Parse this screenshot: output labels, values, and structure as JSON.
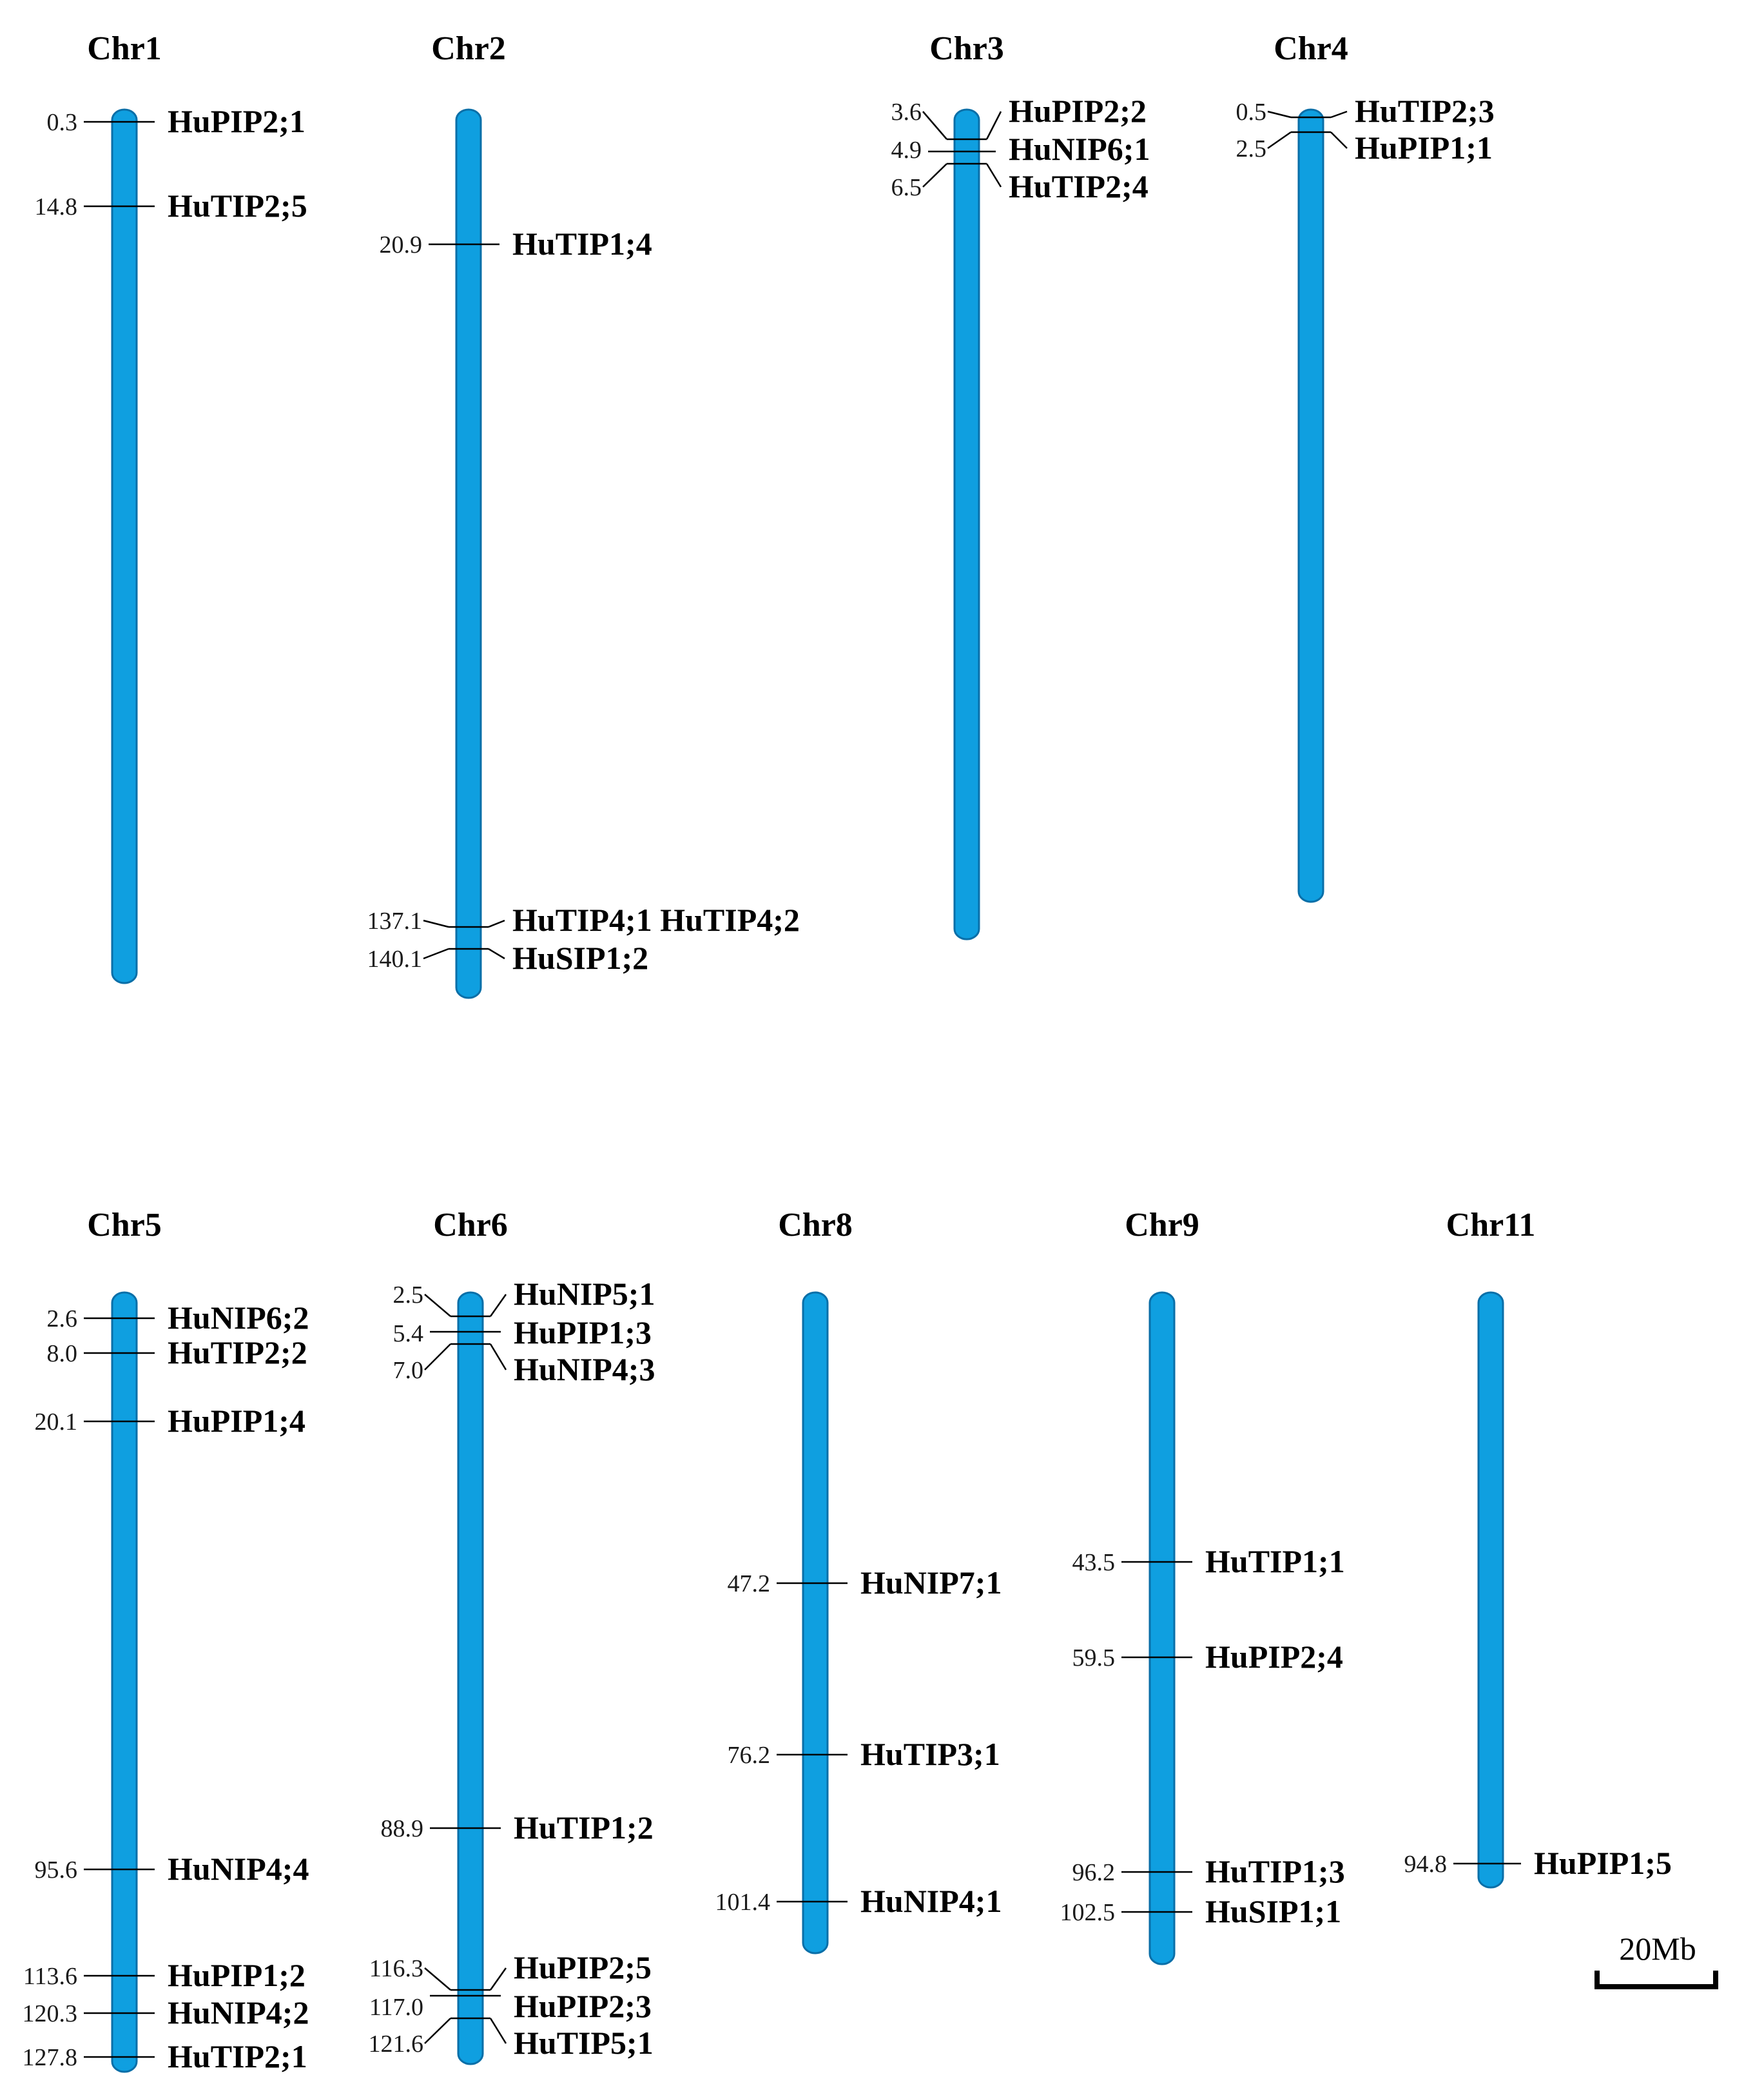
{
  "chromosomes": [
    {
      "name": "Chr1",
      "genes": [
        {
          "pos": "0.3",
          "name": "HuPIP2;1"
        },
        {
          "pos": "14.8",
          "name": "HuTIP2;5"
        }
      ]
    },
    {
      "name": "Chr2",
      "genes": [
        {
          "pos": "20.9",
          "name": "HuTIP1;4"
        },
        {
          "pos": "137.1",
          "name": "HuTIP4;1 HuTIP4;2"
        },
        {
          "pos": "140.1",
          "name": "HuSIP1;2"
        }
      ]
    },
    {
      "name": "Chr3",
      "genes": [
        {
          "pos": "3.6",
          "name": "HuPIP2;2"
        },
        {
          "pos": "4.9",
          "name": "HuNIP6;1"
        },
        {
          "pos": "6.5",
          "name": "HuTIP2;4"
        }
      ]
    },
    {
      "name": "Chr4",
      "genes": [
        {
          "pos": "0.5",
          "name": "HuTIP2;3"
        },
        {
          "pos": "2.5",
          "name": "HuPIP1;1"
        }
      ]
    },
    {
      "name": "Chr5",
      "genes": [
        {
          "pos": "2.6",
          "name": "HuNIP6;2"
        },
        {
          "pos": "8.0",
          "name": "HuTIP2;2"
        },
        {
          "pos": "20.1",
          "name": "HuPIP1;4"
        },
        {
          "pos": "95.6",
          "name": "HuNIP4;4"
        },
        {
          "pos": "113.6",
          "name": "HuPIP1;2"
        },
        {
          "pos": "120.3",
          "name": "HuNIP4;2"
        },
        {
          "pos": "127.8",
          "name": "HuTIP2;1"
        }
      ]
    },
    {
      "name": "Chr6",
      "genes": [
        {
          "pos": "2.5",
          "name": "HuNIP5;1"
        },
        {
          "pos": "5.4",
          "name": "HuPIP1;3"
        },
        {
          "pos": "7.0",
          "name": "HuNIP4;3"
        },
        {
          "pos": "88.9",
          "name": "HuTIP1;2"
        },
        {
          "pos": "116.3",
          "name": "HuPIP2;5"
        },
        {
          "pos": "117.0",
          "name": "HuPIP2;3"
        },
        {
          "pos": "121.6",
          "name": "HuTIP5;1"
        }
      ]
    },
    {
      "name": "Chr8",
      "genes": [
        {
          "pos": "47.2",
          "name": "HuNIP7;1"
        },
        {
          "pos": "76.2",
          "name": "HuTIP3;1"
        },
        {
          "pos": "101.4",
          "name": "HuNIP4;1"
        }
      ]
    },
    {
      "name": "Chr9",
      "genes": [
        {
          "pos": "43.5",
          "name": "HuTIP1;1"
        },
        {
          "pos": "59.5",
          "name": "HuPIP2;4"
        },
        {
          "pos": "96.2",
          "name": "HuTIP1;3"
        },
        {
          "pos": "102.5",
          "name": "HuSIP1;1"
        }
      ]
    },
    {
      "name": "Chr11",
      "genes": [
        {
          "pos": "94.8",
          "name": "HuPIP1;5"
        }
      ]
    }
  ],
  "scale_bar": {
    "label": "20Mb"
  },
  "colors": {
    "chromosome": "#0f9fe0",
    "outline": "#0a6fa8",
    "text": "#000000"
  }
}
